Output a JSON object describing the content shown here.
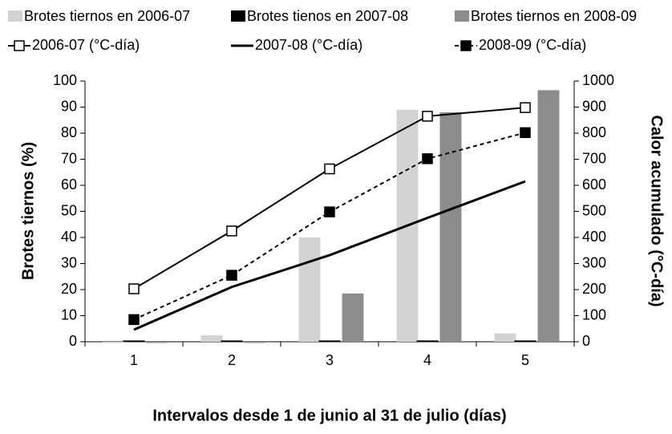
{
  "chart_data": {
    "type": "bar-line",
    "x_label": "Intervalos desde 1 de junio al 31 de julio (días)",
    "y_label": "Brotes tiernos (%)",
    "y2_label": "Calor acumulado (°C-día)",
    "categories": [
      "1",
      "2",
      "3",
      "4",
      "5"
    ],
    "ylim": [
      0,
      100
    ],
    "yticks": [
      0,
      10,
      20,
      30,
      40,
      50,
      60,
      70,
      80,
      90,
      100
    ],
    "y2lim": [
      0,
      1000
    ],
    "y2ticks": [
      0,
      100,
      200,
      300,
      400,
      500,
      600,
      700,
      800,
      900,
      1000
    ],
    "series": [
      {
        "name": "Brotes tiernos en 2006-07",
        "kind": "bar",
        "color": "#d3d3d3",
        "values": [
          0,
          2.5,
          40,
          89,
          3.2
        ]
      },
      {
        "name": "Brotes tienos en 2007-08",
        "kind": "bar",
        "color": "#000000",
        "values": [
          0.5,
          0.5,
          0.5,
          0.5,
          0.5
        ]
      },
      {
        "name": "Brotes tiernos en 2008-09",
        "kind": "bar",
        "color": "#8c8c8c",
        "values": [
          0,
          0,
          18.5,
          88,
          96.5
        ]
      },
      {
        "name": "2006-07 (°C-día)",
        "kind": "line",
        "axis": "y2",
        "color": "#000000",
        "marker": "open-square",
        "dash": false,
        "values": [
          203,
          425,
          663,
          865,
          898
        ]
      },
      {
        "name": "2007-08 (°C-día)",
        "kind": "line",
        "axis": "y2",
        "color": "#000000",
        "marker": "none",
        "dash": false,
        "values": [
          46,
          210,
          332,
          475,
          615
        ]
      },
      {
        "name": "2008-09 (°C-día)",
        "kind": "line",
        "axis": "y2",
        "color": "#000000",
        "marker": "filled-square",
        "dash": true,
        "values": [
          85,
          255,
          498,
          702,
          802
        ]
      }
    ]
  }
}
